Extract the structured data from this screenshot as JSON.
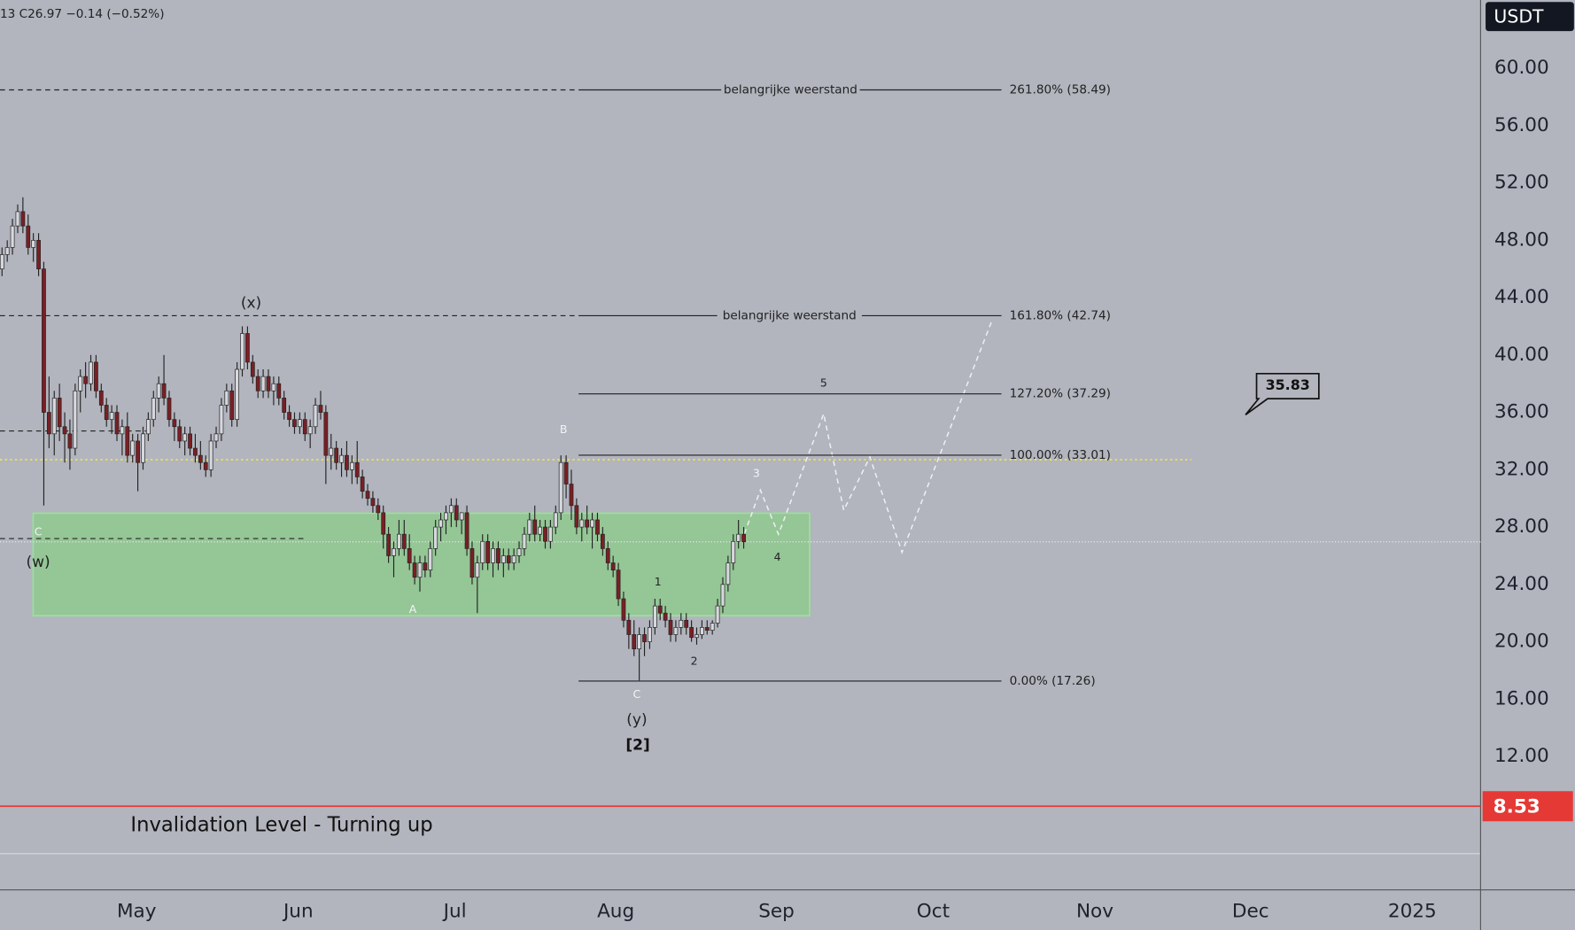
{
  "chart_data": {
    "type": "candlestick",
    "header": "13  C26.97  −0.14 (−0.52%)",
    "currency": "USDT",
    "up_color": "#d6d8de",
    "down_color": "#7a1f24",
    "ylim": [
      2.7,
      64.76
    ],
    "yticks": [
      {
        "value": 12,
        "label": "12.00"
      },
      {
        "value": 16,
        "label": "16.00"
      },
      {
        "value": 20,
        "label": "20.00"
      },
      {
        "value": 24,
        "label": "24.00"
      },
      {
        "value": 28,
        "label": "28.00"
      },
      {
        "value": 32,
        "label": "32.00"
      },
      {
        "value": 36,
        "label": "36.00"
      },
      {
        "value": 40,
        "label": "40.00"
      },
      {
        "value": 44,
        "label": "44.00"
      },
      {
        "value": 48,
        "label": "48.00"
      },
      {
        "value": 52,
        "label": "52.00"
      },
      {
        "value": 56,
        "label": "56.00"
      },
      {
        "value": 60,
        "label": "60.00"
      }
    ],
    "xticks": [
      "May",
      "Jun",
      "Jul",
      "Aug",
      "Sep",
      "Oct",
      "Nov",
      "Dec",
      "2025"
    ],
    "ohlc": [
      [
        46,
        47.5,
        45.5,
        47
      ],
      [
        47,
        48,
        46.5,
        47.5
      ],
      [
        47.5,
        49.5,
        47,
        49
      ],
      [
        49,
        50.5,
        48.5,
        50
      ],
      [
        50,
        51,
        48.5,
        49
      ],
      [
        49,
        49.8,
        47,
        47.5
      ],
      [
        47.5,
        48.5,
        46.5,
        48
      ],
      [
        48,
        48.5,
        45.5,
        46
      ],
      [
        46,
        46.5,
        29.5,
        36
      ],
      [
        36,
        38.5,
        33.5,
        34.5
      ],
      [
        34.5,
        37.5,
        33,
        37
      ],
      [
        37,
        38,
        34,
        35
      ],
      [
        35,
        36,
        32.5,
        34.5
      ],
      [
        34.5,
        35.5,
        32,
        33.5
      ],
      [
        33.5,
        38,
        33,
        37.5
      ],
      [
        37.5,
        39,
        36,
        38.5
      ],
      [
        38.5,
        39.5,
        37,
        38
      ],
      [
        38,
        40,
        37.5,
        39.5
      ],
      [
        39.5,
        40,
        37,
        37.5
      ],
      [
        37.5,
        38,
        36,
        36.5
      ],
      [
        36.5,
        37,
        35,
        35.5
      ],
      [
        35.5,
        36.5,
        34.5,
        36
      ],
      [
        36,
        36.5,
        34,
        34.5
      ],
      [
        34.5,
        35.5,
        33,
        35
      ],
      [
        35,
        36,
        32.5,
        33
      ],
      [
        33,
        34.5,
        32.5,
        34
      ],
      [
        34,
        34.5,
        30.5,
        32.5
      ],
      [
        32.5,
        35,
        32,
        34.5
      ],
      [
        34.5,
        36,
        34,
        35.5
      ],
      [
        35.5,
        37.5,
        35,
        37
      ],
      [
        37,
        38.5,
        36,
        38
      ],
      [
        38,
        40,
        36.5,
        37
      ],
      [
        37,
        37.5,
        35,
        35.5
      ],
      [
        35.5,
        36,
        34,
        35
      ],
      [
        35,
        35.5,
        33.5,
        34
      ],
      [
        34,
        35,
        33,
        34.5
      ],
      [
        34.5,
        35,
        33,
        33.5
      ],
      [
        33.5,
        34.5,
        32.5,
        33
      ],
      [
        33,
        34,
        32,
        32.5
      ],
      [
        32.5,
        33,
        31.5,
        32
      ],
      [
        32,
        34.5,
        31.5,
        34
      ],
      [
        34,
        35,
        33.5,
        34.5
      ],
      [
        34.5,
        37,
        34,
        36.5
      ],
      [
        36.5,
        38,
        36,
        37.5
      ],
      [
        37.5,
        38,
        35,
        35.5
      ],
      [
        35.5,
        39.5,
        35,
        39
      ],
      [
        39,
        42,
        38.5,
        41.5
      ],
      [
        41.5,
        42,
        39,
        39.5
      ],
      [
        39.5,
        40,
        38,
        38.5
      ],
      [
        38.5,
        39,
        37,
        37.5
      ],
      [
        37.5,
        39,
        37,
        38.5
      ],
      [
        38.5,
        39,
        37,
        37.5
      ],
      [
        37.5,
        38.5,
        36.5,
        38
      ],
      [
        38,
        38.5,
        36.5,
        37
      ],
      [
        37,
        37.5,
        35.5,
        36
      ],
      [
        36,
        36.5,
        35,
        35.5
      ],
      [
        35.5,
        36,
        34.5,
        35
      ],
      [
        35,
        36,
        34.5,
        35.5
      ],
      [
        35.5,
        36,
        34,
        34.5
      ],
      [
        34.5,
        35.5,
        33.5,
        35
      ],
      [
        35,
        37,
        34.5,
        36.5
      ],
      [
        36.5,
        37.5,
        35.5,
        36
      ],
      [
        36,
        36.5,
        31,
        33
      ],
      [
        33,
        34.5,
        32,
        33.5
      ],
      [
        33.5,
        34,
        32,
        32.5
      ],
      [
        32.5,
        33.5,
        31.5,
        33
      ],
      [
        33,
        34,
        31.5,
        32
      ],
      [
        32,
        33,
        31,
        32.5
      ],
      [
        32.5,
        34,
        31,
        31.5
      ],
      [
        31.5,
        32,
        30,
        30.5
      ],
      [
        30.5,
        31,
        29.5,
        30
      ],
      [
        30,
        30.5,
        29,
        29.5
      ],
      [
        29.5,
        30,
        28.5,
        29
      ],
      [
        29,
        29.5,
        26.5,
        27.5
      ],
      [
        27.5,
        28,
        25.5,
        26
      ],
      [
        26,
        27,
        24.5,
        26.5
      ],
      [
        26.5,
        28.5,
        26,
        27.5
      ],
      [
        27.5,
        28.5,
        26,
        26.5
      ],
      [
        26.5,
        27.5,
        25,
        25.5
      ],
      [
        25.5,
        26,
        24,
        24.5
      ],
      [
        24.5,
        26,
        23.5,
        25.5
      ],
      [
        25.5,
        26,
        24.5,
        25
      ],
      [
        25,
        27,
        24.5,
        26.5
      ],
      [
        26.5,
        28.5,
        26,
        28
      ],
      [
        28,
        29,
        27,
        28.5
      ],
      [
        28.5,
        29.5,
        27.5,
        29
      ],
      [
        29,
        30,
        28,
        29.5
      ],
      [
        29.5,
        30,
        28,
        28.5
      ],
      [
        28.5,
        29,
        27.5,
        29
      ],
      [
        29,
        29.5,
        26,
        26.5
      ],
      [
        26.5,
        27,
        24,
        24.5
      ],
      [
        24.5,
        26,
        22,
        25.5
      ],
      [
        25.5,
        27.5,
        25,
        27
      ],
      [
        27,
        27.5,
        25,
        25.5
      ],
      [
        25.5,
        27,
        24.5,
        26.5
      ],
      [
        26.5,
        27,
        25,
        25.5
      ],
      [
        25.5,
        26.5,
        24.5,
        26
      ],
      [
        26,
        26.5,
        25,
        25.5
      ],
      [
        25.5,
        26.5,
        25,
        26
      ],
      [
        26,
        27,
        25.5,
        26.5
      ],
      [
        26.5,
        28,
        26,
        27.5
      ],
      [
        27.5,
        29,
        27,
        28.5
      ],
      [
        28.5,
        29.5,
        27,
        27.5
      ],
      [
        27.5,
        28.5,
        27,
        28
      ],
      [
        28,
        28.5,
        26.5,
        27
      ],
      [
        27,
        28.5,
        26.5,
        28
      ],
      [
        28,
        29.5,
        27.5,
        29
      ],
      [
        29,
        33,
        28.5,
        32.5
      ],
      [
        32.5,
        33,
        30,
        31
      ],
      [
        31,
        32,
        28.5,
        29.5
      ],
      [
        29.5,
        30,
        27.5,
        28
      ],
      [
        28,
        29,
        27,
        28.5
      ],
      [
        28.5,
        29.5,
        27.5,
        28
      ],
      [
        28,
        29,
        26.5,
        28.5
      ],
      [
        28.5,
        29,
        27,
        27.5
      ],
      [
        27.5,
        28,
        26,
        26.5
      ],
      [
        26.5,
        27,
        25,
        25.5
      ],
      [
        25.5,
        26,
        24.5,
        25
      ],
      [
        25,
        25.5,
        22.5,
        23
      ],
      [
        23,
        23.5,
        21,
        21.5
      ],
      [
        21.5,
        22,
        19.5,
        20.5
      ],
      [
        20.5,
        21.5,
        19,
        19.5
      ],
      [
        19.5,
        21,
        17.3,
        20.5
      ],
      [
        20.5,
        21,
        19,
        20
      ],
      [
        20,
        21.5,
        19.5,
        21
      ],
      [
        21,
        23,
        20.5,
        22.5
      ],
      [
        22.5,
        23,
        21.5,
        22
      ],
      [
        22,
        22.5,
        21,
        21.5
      ],
      [
        21.5,
        22,
        20,
        20.5
      ],
      [
        20.5,
        21.5,
        20,
        21
      ],
      [
        21,
        22,
        20.5,
        21.5
      ],
      [
        21.5,
        22,
        20.5,
        21
      ],
      [
        21,
        21.5,
        20,
        20.3
      ],
      [
        20.3,
        21,
        19.8,
        20.5
      ],
      [
        20.5,
        21.5,
        20.2,
        21
      ],
      [
        21,
        21.5,
        20.5,
        20.8
      ],
      [
        20.8,
        21.5,
        20.5,
        21.3
      ],
      [
        21.3,
        23,
        21,
        22.5
      ],
      [
        22.5,
        24.5,
        22,
        24
      ],
      [
        24,
        26,
        23.5,
        25.5
      ],
      [
        25.5,
        27.5,
        25,
        27
      ],
      [
        27,
        28.5,
        26.5,
        27.5
      ],
      [
        27.5,
        28,
        26.5,
        26.97
      ]
    ],
    "last_close": 26.97,
    "fib_levels": [
      {
        "value": 58.49,
        "label": "261.80% (58.49)"
      },
      {
        "value": 42.74,
        "label": "161.80% (42.74)"
      },
      {
        "value": 37.29,
        "label": "127.20% (37.29)"
      },
      {
        "value": 33.01,
        "label": "100.00% (33.01)"
      },
      {
        "value": 17.26,
        "label": "0.00% (17.26)"
      }
    ],
    "resistance_labels": [
      "belangrijke weerstand",
      "belangrijke weerstand"
    ],
    "yellow_level": 32.7,
    "dashed_levels": [
      34.7,
      27.2
    ],
    "wave_labels": [
      "(x)",
      "(w)",
      "C",
      "A",
      "B",
      "C",
      "(y)",
      "[2]",
      "1",
      "2",
      "3",
      "4",
      "5"
    ],
    "invalidation": {
      "value": 8.53,
      "label": "Invalidation Level - Turning up"
    },
    "callout": 35.83
  }
}
